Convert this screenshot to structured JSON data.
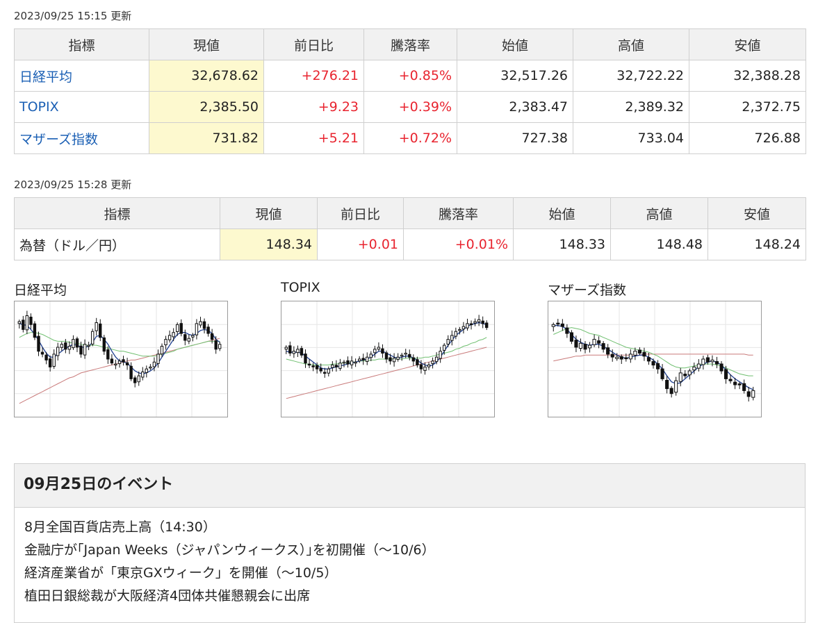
{
  "indices": {
    "updated": "2023/09/25 15:15 更新",
    "headers": [
      "指標",
      "現値",
      "前日比",
      "騰落率",
      "始値",
      "高値",
      "安値"
    ],
    "rows": [
      {
        "name": "日経平均",
        "current": "32,678.62",
        "change": "+276.21",
        "rate": "+0.85%",
        "open": "32,517.26",
        "high": "32,722.22",
        "low": "32,388.28"
      },
      {
        "name": "TOPIX",
        "current": "2,385.50",
        "change": "+9.23",
        "rate": "+0.39%",
        "open": "2,383.47",
        "high": "2,389.32",
        "low": "2,372.75"
      },
      {
        "name": "マザーズ指数",
        "current": "731.82",
        "change": "+5.21",
        "rate": "+0.72%",
        "open": "727.38",
        "high": "733.04",
        "low": "726.88"
      }
    ]
  },
  "fx": {
    "updated": "2023/09/25 15:28 更新",
    "headers": [
      "指標",
      "現値",
      "前日比",
      "騰落率",
      "始値",
      "高値",
      "安値"
    ],
    "row": {
      "name": "為替（ドル／円）",
      "current": "148.34",
      "change": "+0.01",
      "rate": "+0.01%",
      "open": "148.33",
      "high": "148.48",
      "low": "148.24"
    }
  },
  "colors": {
    "link": "#1a5fb4",
    "up": "#e8242f",
    "current_bg": "#fdf9cf",
    "header_bg": "#f1f1f1",
    "ma_short": "#1f3f8f",
    "ma_mid": "#6fbf6f",
    "ma_long": "#c97a7a"
  },
  "chart_data": [
    {
      "type": "candlestick",
      "title": "日経平均",
      "close": [
        0.88,
        0.8,
        0.94,
        0.85,
        0.72,
        0.58,
        0.55,
        0.49,
        0.42,
        0.55,
        0.62,
        0.65,
        0.6,
        0.63,
        0.7,
        0.62,
        0.55,
        0.65,
        0.64,
        0.78,
        0.87,
        0.72,
        0.58,
        0.5,
        0.46,
        0.45,
        0.48,
        0.47,
        0.44,
        0.3,
        0.26,
        0.33,
        0.37,
        0.4,
        0.42,
        0.47,
        0.55,
        0.63,
        0.7,
        0.74,
        0.77,
        0.85,
        0.76,
        0.69,
        0.71,
        0.74,
        0.86,
        0.88,
        0.81,
        0.76,
        0.7,
        0.6,
        0.65
      ],
      "ma_short": [
        0.86,
        0.85,
        0.84,
        0.8,
        0.75,
        0.69,
        0.62,
        0.56,
        0.52,
        0.52,
        0.55,
        0.58,
        0.61,
        0.63,
        0.65,
        0.64,
        0.62,
        0.62,
        0.63,
        0.67,
        0.73,
        0.74,
        0.7,
        0.65,
        0.58,
        0.52,
        0.48,
        0.47,
        0.46,
        0.42,
        0.38,
        0.36,
        0.35,
        0.36,
        0.38,
        0.41,
        0.46,
        0.52,
        0.58,
        0.64,
        0.7,
        0.75,
        0.77,
        0.77,
        0.75,
        0.74,
        0.76,
        0.79,
        0.8,
        0.79,
        0.76,
        0.7,
        0.67
      ],
      "ma_mid": [
        0.72,
        0.74,
        0.76,
        0.77,
        0.77,
        0.76,
        0.75,
        0.73,
        0.71,
        0.69,
        0.68,
        0.68,
        0.68,
        0.67,
        0.66,
        0.66,
        0.65,
        0.64,
        0.64,
        0.64,
        0.64,
        0.63,
        0.62,
        0.61,
        0.6,
        0.59,
        0.58,
        0.58,
        0.57,
        0.56,
        0.55,
        0.54,
        0.53,
        0.53,
        0.53,
        0.53,
        0.54,
        0.55,
        0.56,
        0.57,
        0.58,
        0.6,
        0.61,
        0.62,
        0.63,
        0.64,
        0.65,
        0.66,
        0.67,
        0.68,
        0.68,
        0.68,
        0.68
      ],
      "ma_long": [
        0.05,
        0.07,
        0.09,
        0.11,
        0.13,
        0.15,
        0.17,
        0.19,
        0.21,
        0.23,
        0.25,
        0.27,
        0.29,
        0.31,
        0.32,
        0.34,
        0.36,
        0.37,
        0.38,
        0.39,
        0.4,
        0.41,
        0.42,
        0.43,
        0.44,
        0.45,
        0.46,
        0.47,
        0.48,
        0.49,
        0.49,
        0.5,
        0.51,
        0.52,
        0.53,
        0.54,
        0.55,
        0.56,
        0.57,
        0.58,
        0.59,
        0.6,
        0.61,
        0.62,
        0.63,
        0.64,
        0.65,
        0.66,
        0.67,
        0.68,
        0.69,
        0.7,
        0.71
      ]
    },
    {
      "type": "candlestick",
      "title": "TOPIX",
      "close": [
        0.62,
        0.56,
        0.58,
        0.6,
        0.54,
        0.46,
        0.44,
        0.42,
        0.4,
        0.38,
        0.36,
        0.4,
        0.44,
        0.42,
        0.46,
        0.47,
        0.45,
        0.48,
        0.47,
        0.5,
        0.49,
        0.52,
        0.55,
        0.6,
        0.62,
        0.56,
        0.5,
        0.48,
        0.51,
        0.52,
        0.54,
        0.56,
        0.52,
        0.48,
        0.44,
        0.4,
        0.42,
        0.44,
        0.48,
        0.52,
        0.58,
        0.64,
        0.7,
        0.74,
        0.78,
        0.8,
        0.83,
        0.86,
        0.85,
        0.88,
        0.9,
        0.86,
        0.82
      ],
      "ma_short": [
        0.58,
        0.57,
        0.57,
        0.57,
        0.56,
        0.53,
        0.5,
        0.47,
        0.44,
        0.41,
        0.4,
        0.4,
        0.41,
        0.42,
        0.43,
        0.44,
        0.45,
        0.46,
        0.47,
        0.48,
        0.49,
        0.5,
        0.52,
        0.55,
        0.58,
        0.58,
        0.56,
        0.54,
        0.52,
        0.51,
        0.52,
        0.53,
        0.53,
        0.51,
        0.49,
        0.46,
        0.44,
        0.43,
        0.44,
        0.47,
        0.52,
        0.58,
        0.64,
        0.69,
        0.74,
        0.77,
        0.8,
        0.83,
        0.85,
        0.86,
        0.87,
        0.86,
        0.85
      ],
      "ma_mid": [
        0.5,
        0.49,
        0.48,
        0.47,
        0.46,
        0.45,
        0.45,
        0.44,
        0.44,
        0.44,
        0.44,
        0.44,
        0.45,
        0.45,
        0.46,
        0.46,
        0.46,
        0.47,
        0.47,
        0.48,
        0.48,
        0.48,
        0.49,
        0.49,
        0.5,
        0.5,
        0.5,
        0.5,
        0.5,
        0.5,
        0.5,
        0.51,
        0.51,
        0.51,
        0.51,
        0.51,
        0.52,
        0.52,
        0.53,
        0.54,
        0.55,
        0.56,
        0.57,
        0.58,
        0.6,
        0.61,
        0.63,
        0.64,
        0.66,
        0.67,
        0.69,
        0.7,
        0.72
      ],
      "ma_long": [
        0.1,
        0.11,
        0.12,
        0.13,
        0.14,
        0.15,
        0.16,
        0.17,
        0.18,
        0.19,
        0.2,
        0.21,
        0.22,
        0.23,
        0.24,
        0.25,
        0.26,
        0.27,
        0.28,
        0.29,
        0.3,
        0.31,
        0.32,
        0.33,
        0.34,
        0.35,
        0.36,
        0.37,
        0.38,
        0.39,
        0.4,
        0.41,
        0.42,
        0.43,
        0.44,
        0.45,
        0.46,
        0.47,
        0.48,
        0.49,
        0.5,
        0.51,
        0.52,
        0.53,
        0.54,
        0.55,
        0.56,
        0.57,
        0.58,
        0.59,
        0.6,
        0.61,
        0.62
      ]
    },
    {
      "type": "candlestick",
      "title": "マザーズ指数",
      "close": [
        0.85,
        0.86,
        0.83,
        0.76,
        0.68,
        0.62,
        0.66,
        0.6,
        0.64,
        0.7,
        0.66,
        0.6,
        0.55,
        0.52,
        0.52,
        0.5,
        0.51,
        0.55,
        0.58,
        0.56,
        0.53,
        0.48,
        0.44,
        0.4,
        0.3,
        0.2,
        0.15,
        0.28,
        0.36,
        0.33,
        0.38,
        0.42,
        0.45,
        0.5,
        0.47,
        0.49,
        0.45,
        0.38,
        0.3,
        0.28,
        0.24,
        0.24,
        0.18,
        0.12,
        0.18
      ],
      "ma_short": [
        0.84,
        0.84,
        0.83,
        0.8,
        0.75,
        0.7,
        0.67,
        0.65,
        0.64,
        0.65,
        0.65,
        0.63,
        0.6,
        0.57,
        0.54,
        0.52,
        0.51,
        0.52,
        0.53,
        0.54,
        0.54,
        0.52,
        0.49,
        0.45,
        0.4,
        0.33,
        0.27,
        0.25,
        0.26,
        0.3,
        0.34,
        0.38,
        0.42,
        0.45,
        0.47,
        0.48,
        0.47,
        0.44,
        0.39,
        0.34,
        0.3,
        0.27,
        0.24,
        0.21,
        0.19
      ],
      "ma_mid": [
        0.75,
        0.77,
        0.79,
        0.81,
        0.82,
        0.81,
        0.8,
        0.78,
        0.76,
        0.75,
        0.74,
        0.72,
        0.7,
        0.68,
        0.66,
        0.64,
        0.62,
        0.61,
        0.6,
        0.59,
        0.58,
        0.57,
        0.55,
        0.53,
        0.5,
        0.47,
        0.44,
        0.42,
        0.41,
        0.41,
        0.42,
        0.43,
        0.44,
        0.45,
        0.45,
        0.45,
        0.44,
        0.43,
        0.41,
        0.39,
        0.37,
        0.35,
        0.34,
        0.33,
        0.33
      ],
      "ma_long": [
        0.48,
        0.49,
        0.5,
        0.51,
        0.52,
        0.53,
        0.53,
        0.54,
        0.54,
        0.54,
        0.54,
        0.54,
        0.54,
        0.54,
        0.54,
        0.54,
        0.54,
        0.54,
        0.54,
        0.54,
        0.55,
        0.55,
        0.55,
        0.55,
        0.55,
        0.55,
        0.55,
        0.55,
        0.55,
        0.55,
        0.55,
        0.55,
        0.55,
        0.55,
        0.55,
        0.55,
        0.55,
        0.55,
        0.55,
        0.55,
        0.55,
        0.55,
        0.55,
        0.54,
        0.54
      ]
    }
  ],
  "events": {
    "title": "09月25日のイベント",
    "items": [
      "8月全国百貨店売上高（14:30）",
      "金融庁が｢Japan Weeks（ジャパンウィークス）｣を初開催（～10/6）",
      "経済産業省が「東京GXウィーク」を開催（～10/5）",
      "植田日銀総裁が大阪経済4団体共催懇親会に出席"
    ]
  }
}
